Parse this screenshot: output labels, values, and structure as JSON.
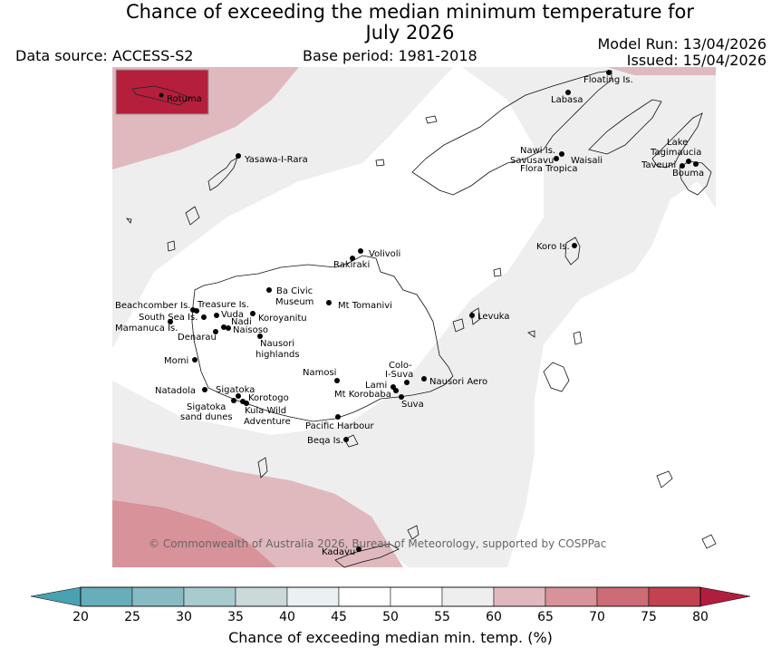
{
  "title_line1": "Chance of exceeding the median minimum temperature for",
  "title_line2": "July 2026",
  "data_source": "Data source: ACCESS-S2",
  "base_period": "Base period: 1981-2018",
  "model_run": "Model Run: 13/04/2026",
  "issued": "Issued: 15/04/2026",
  "copyright": "© Commonwealth of Australia 2026, Bureau of Meteorology, supported by COSPPac",
  "inset_label": "Rotuma",
  "colorbar": {
    "label": "Chance of exceeding median min. temp. (%)",
    "ticks": [
      "20",
      "25",
      "30",
      "35",
      "40",
      "45",
      "50",
      "55",
      "60",
      "65",
      "70",
      "75",
      "80"
    ],
    "colors": [
      "#4aa1b0",
      "#67aebb",
      "#88bac4",
      "#a8cbd0",
      "#ccd9db",
      "#eaf1f3",
      "#ffffff",
      "#ffffff",
      "#eeeeee",
      "#e0b9be",
      "#d8929a",
      "#cd6b76",
      "#c2424f",
      "#b01e3d"
    ]
  },
  "places": [
    {
      "name": "Floating Is."
    },
    {
      "name": "Labasa"
    },
    {
      "name": "Yasawa-I-Rara"
    },
    {
      "name": "Nawi Is."
    },
    {
      "name": "Savusavu"
    },
    {
      "name": "Waisali"
    },
    {
      "name": "Flora Tropica"
    },
    {
      "name": "Lake"
    },
    {
      "name": "Tagimaucia"
    },
    {
      "name": "Taveuni"
    },
    {
      "name": "Bouma"
    },
    {
      "name": "Koro Is."
    },
    {
      "name": "Volivoli"
    },
    {
      "name": "Rakiraki"
    },
    {
      "name": "Ba Civic"
    },
    {
      "name": "Museum"
    },
    {
      "name": "Mt Tomanivi"
    },
    {
      "name": "Beachcomber Is."
    },
    {
      "name": "Treasure Is."
    },
    {
      "name": "South Sea Is."
    },
    {
      "name": "Vuda"
    },
    {
      "name": "Nadi"
    },
    {
      "name": "Koroyanitu"
    },
    {
      "name": "Mamanuca Is."
    },
    {
      "name": "Naisoso"
    },
    {
      "name": "Denarau"
    },
    {
      "name": "Nausori"
    },
    {
      "name": "highlands"
    },
    {
      "name": "Levuka"
    },
    {
      "name": "Momi"
    },
    {
      "name": "Namosi"
    },
    {
      "name": "Colo-"
    },
    {
      "name": "I-Suva"
    },
    {
      "name": "Lami"
    },
    {
      "name": "Nausori Aero"
    },
    {
      "name": "Natadola"
    },
    {
      "name": "Sigatoka"
    },
    {
      "name": "Korotogo"
    },
    {
      "name": "Mt Korobaba"
    },
    {
      "name": "Suva"
    },
    {
      "name": "Sigatoka"
    },
    {
      "name": "sand dunes"
    },
    {
      "name": "Kula Wild"
    },
    {
      "name": "Adventure"
    },
    {
      "name": "Pacific Harbour"
    },
    {
      "name": "Beqa Is."
    },
    {
      "name": "Kadavu"
    }
  ]
}
